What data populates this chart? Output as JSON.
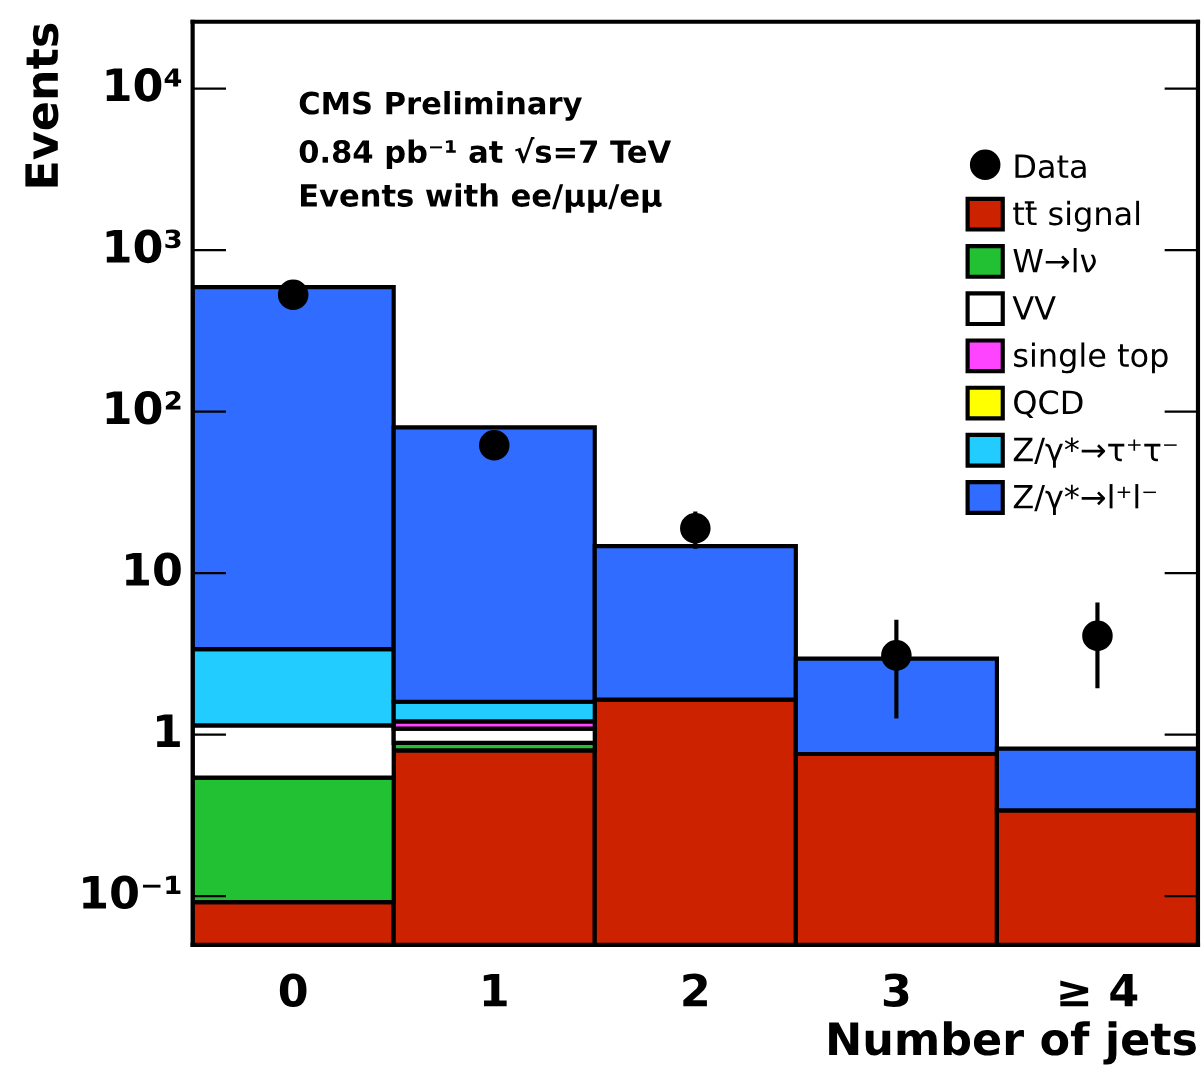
{
  "chart_data": {
    "type": "bar",
    "stacked": true,
    "xlabel": "Number of jets",
    "ylabel": "Events",
    "categories": [
      "0",
      "1",
      "2",
      "3",
      "≥ 4"
    ],
    "log": "y",
    "ylim": [
      0.05,
      26000
    ],
    "yticks": [
      {
        "value": 0.1,
        "label": "10⁻¹"
      },
      1,
      10,
      {
        "value": 100,
        "label": "10²"
      },
      {
        "value": 1000,
        "label": "10³"
      },
      {
        "value": 10000,
        "label": "10⁴"
      }
    ],
    "annotations": [
      "CMS Preliminary",
      "0.84 pb⁻¹ at √s=7 TeV",
      "Events with ee/μμ/eμ"
    ],
    "legend": "top right",
    "grid": false,
    "series": [
      {
        "name": "tt̄ signal",
        "color": "#cc2200",
        "values": [
          0.092,
          0.8,
          1.65,
          0.76,
          0.34
        ]
      },
      {
        "name": "W→lν",
        "color": "#22c033",
        "values": [
          0.45,
          0.09,
          null,
          null,
          null
        ]
      },
      {
        "name": "VV",
        "color": "#ffffff",
        "values": [
          0.6,
          0.2,
          null,
          null,
          null
        ]
      },
      {
        "name": "single top",
        "color": "#ff44ff",
        "values": [
          null,
          0.12,
          null,
          null,
          null
        ]
      },
      {
        "name": "QCD",
        "color": "#ffff00",
        "values": [
          null,
          null,
          null,
          null,
          null
        ]
      },
      {
        "name": "Z/γ*→τ⁺τ⁻",
        "color": "#22ccff",
        "values": [
          2.25,
          0.39,
          null,
          null,
          null
        ]
      },
      {
        "name": "Z/γ*→l⁺l⁻",
        "color": "#2f6cff",
        "values": [
          587,
          78.4,
          13.05,
          2.2,
          0.48
        ]
      },
      {
        "name": "Data",
        "type": "scatter",
        "color": "#000000",
        "marker": "circle",
        "values": [
          530,
          62,
          19,
          3.1,
          4.1
        ],
        "errors": [
          [
            507,
            553
          ],
          [
            54,
            70
          ],
          [
            14.6,
            23.4
          ],
          [
            1.3,
            5.0
          ],
          [
            2.0,
            6.4
          ]
        ]
      }
    ]
  }
}
